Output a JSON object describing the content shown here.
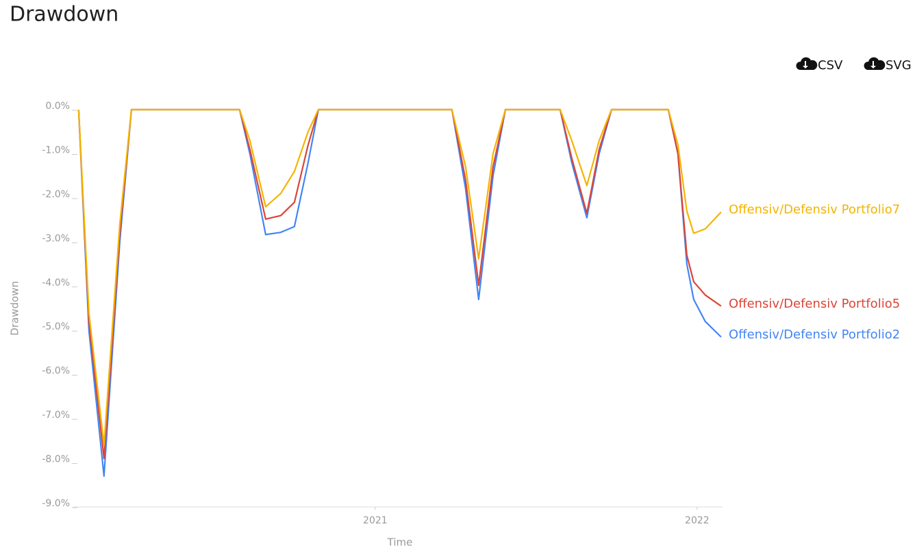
{
  "toolbar": {
    "csv": "CSV",
    "svg": "SVG"
  },
  "chart_data": {
    "type": "line",
    "title": "Drawdown",
    "x_label": "Time",
    "y_label": "Drawdown",
    "x": [
      2020.0787,
      2020.1106,
      2020.1574,
      2020.2064,
      2020.2426,
      2020.5787,
      2020.6106,
      2020.6596,
      2020.7064,
      2020.7489,
      2020.7915,
      2020.8234,
      2021.2383,
      2021.2809,
      2021.3213,
      2021.366,
      2021.4043,
      2021.5745,
      2021.6106,
      2021.6574,
      2021.6957,
      2021.734,
      2021.9106,
      2021.9404,
      2021.9681,
      2021.9894,
      2022.0255,
      2022.0745
    ],
    "xlim": [
      2020.062,
      2022.079
    ],
    "xticks": [
      2021,
      2022
    ],
    "ylim": [
      -9,
      0
    ],
    "yticks": [
      {
        "value": 0,
        "label": "0.0%"
      },
      {
        "value": -1,
        "label": "-1.0%"
      },
      {
        "value": -2,
        "label": "-2.0%"
      },
      {
        "value": -3,
        "label": "-3.0%"
      },
      {
        "value": -4,
        "label": "-4.0%"
      },
      {
        "value": -5,
        "label": "-5.0%"
      },
      {
        "value": -6,
        "label": "-6.0%"
      },
      {
        "value": -7,
        "label": "-7.0%"
      },
      {
        "value": -8,
        "label": "-8.0%"
      },
      {
        "value": -9,
        "label": "-9.0%"
      }
    ],
    "grid": false,
    "series": [
      {
        "name": "Offensiv/Defensiv Portfolio2",
        "color": "#4285f4",
        "values": [
          0,
          -5.0,
          -8.3,
          -3.0,
          0,
          0,
          -1.0,
          -2.83,
          -2.78,
          -2.65,
          -1.2,
          0,
          0,
          -1.8,
          -4.3,
          -1.5,
          0,
          0,
          -1.2,
          -2.45,
          -1.0,
          0,
          0,
          -1.0,
          -3.5,
          -4.3,
          -4.8,
          -5.15
        ]
      },
      {
        "name": "Offensiv/Defensiv Portfolio5",
        "color": "#db4437",
        "values": [
          0,
          -4.8,
          -7.9,
          -2.8,
          0,
          0,
          -0.9,
          -2.48,
          -2.4,
          -2.1,
          -0.8,
          0,
          0,
          -1.6,
          -3.98,
          -1.3,
          0,
          0,
          -1.1,
          -2.35,
          -0.9,
          0,
          0,
          -1.0,
          -3.3,
          -3.9,
          -4.2,
          -4.45
        ]
      },
      {
        "name": "Offensiv/Defensiv Portfolio7",
        "color": "#f4b400",
        "values": [
          0,
          -4.6,
          -7.6,
          -2.6,
          0,
          0,
          -0.7,
          -2.2,
          -1.9,
          -1.4,
          -0.5,
          0,
          0,
          -1.3,
          -3.38,
          -1.0,
          0,
          0,
          -0.7,
          -1.72,
          -0.7,
          0,
          0,
          -0.8,
          -2.3,
          -2.8,
          -2.7,
          -2.32
        ]
      }
    ]
  }
}
